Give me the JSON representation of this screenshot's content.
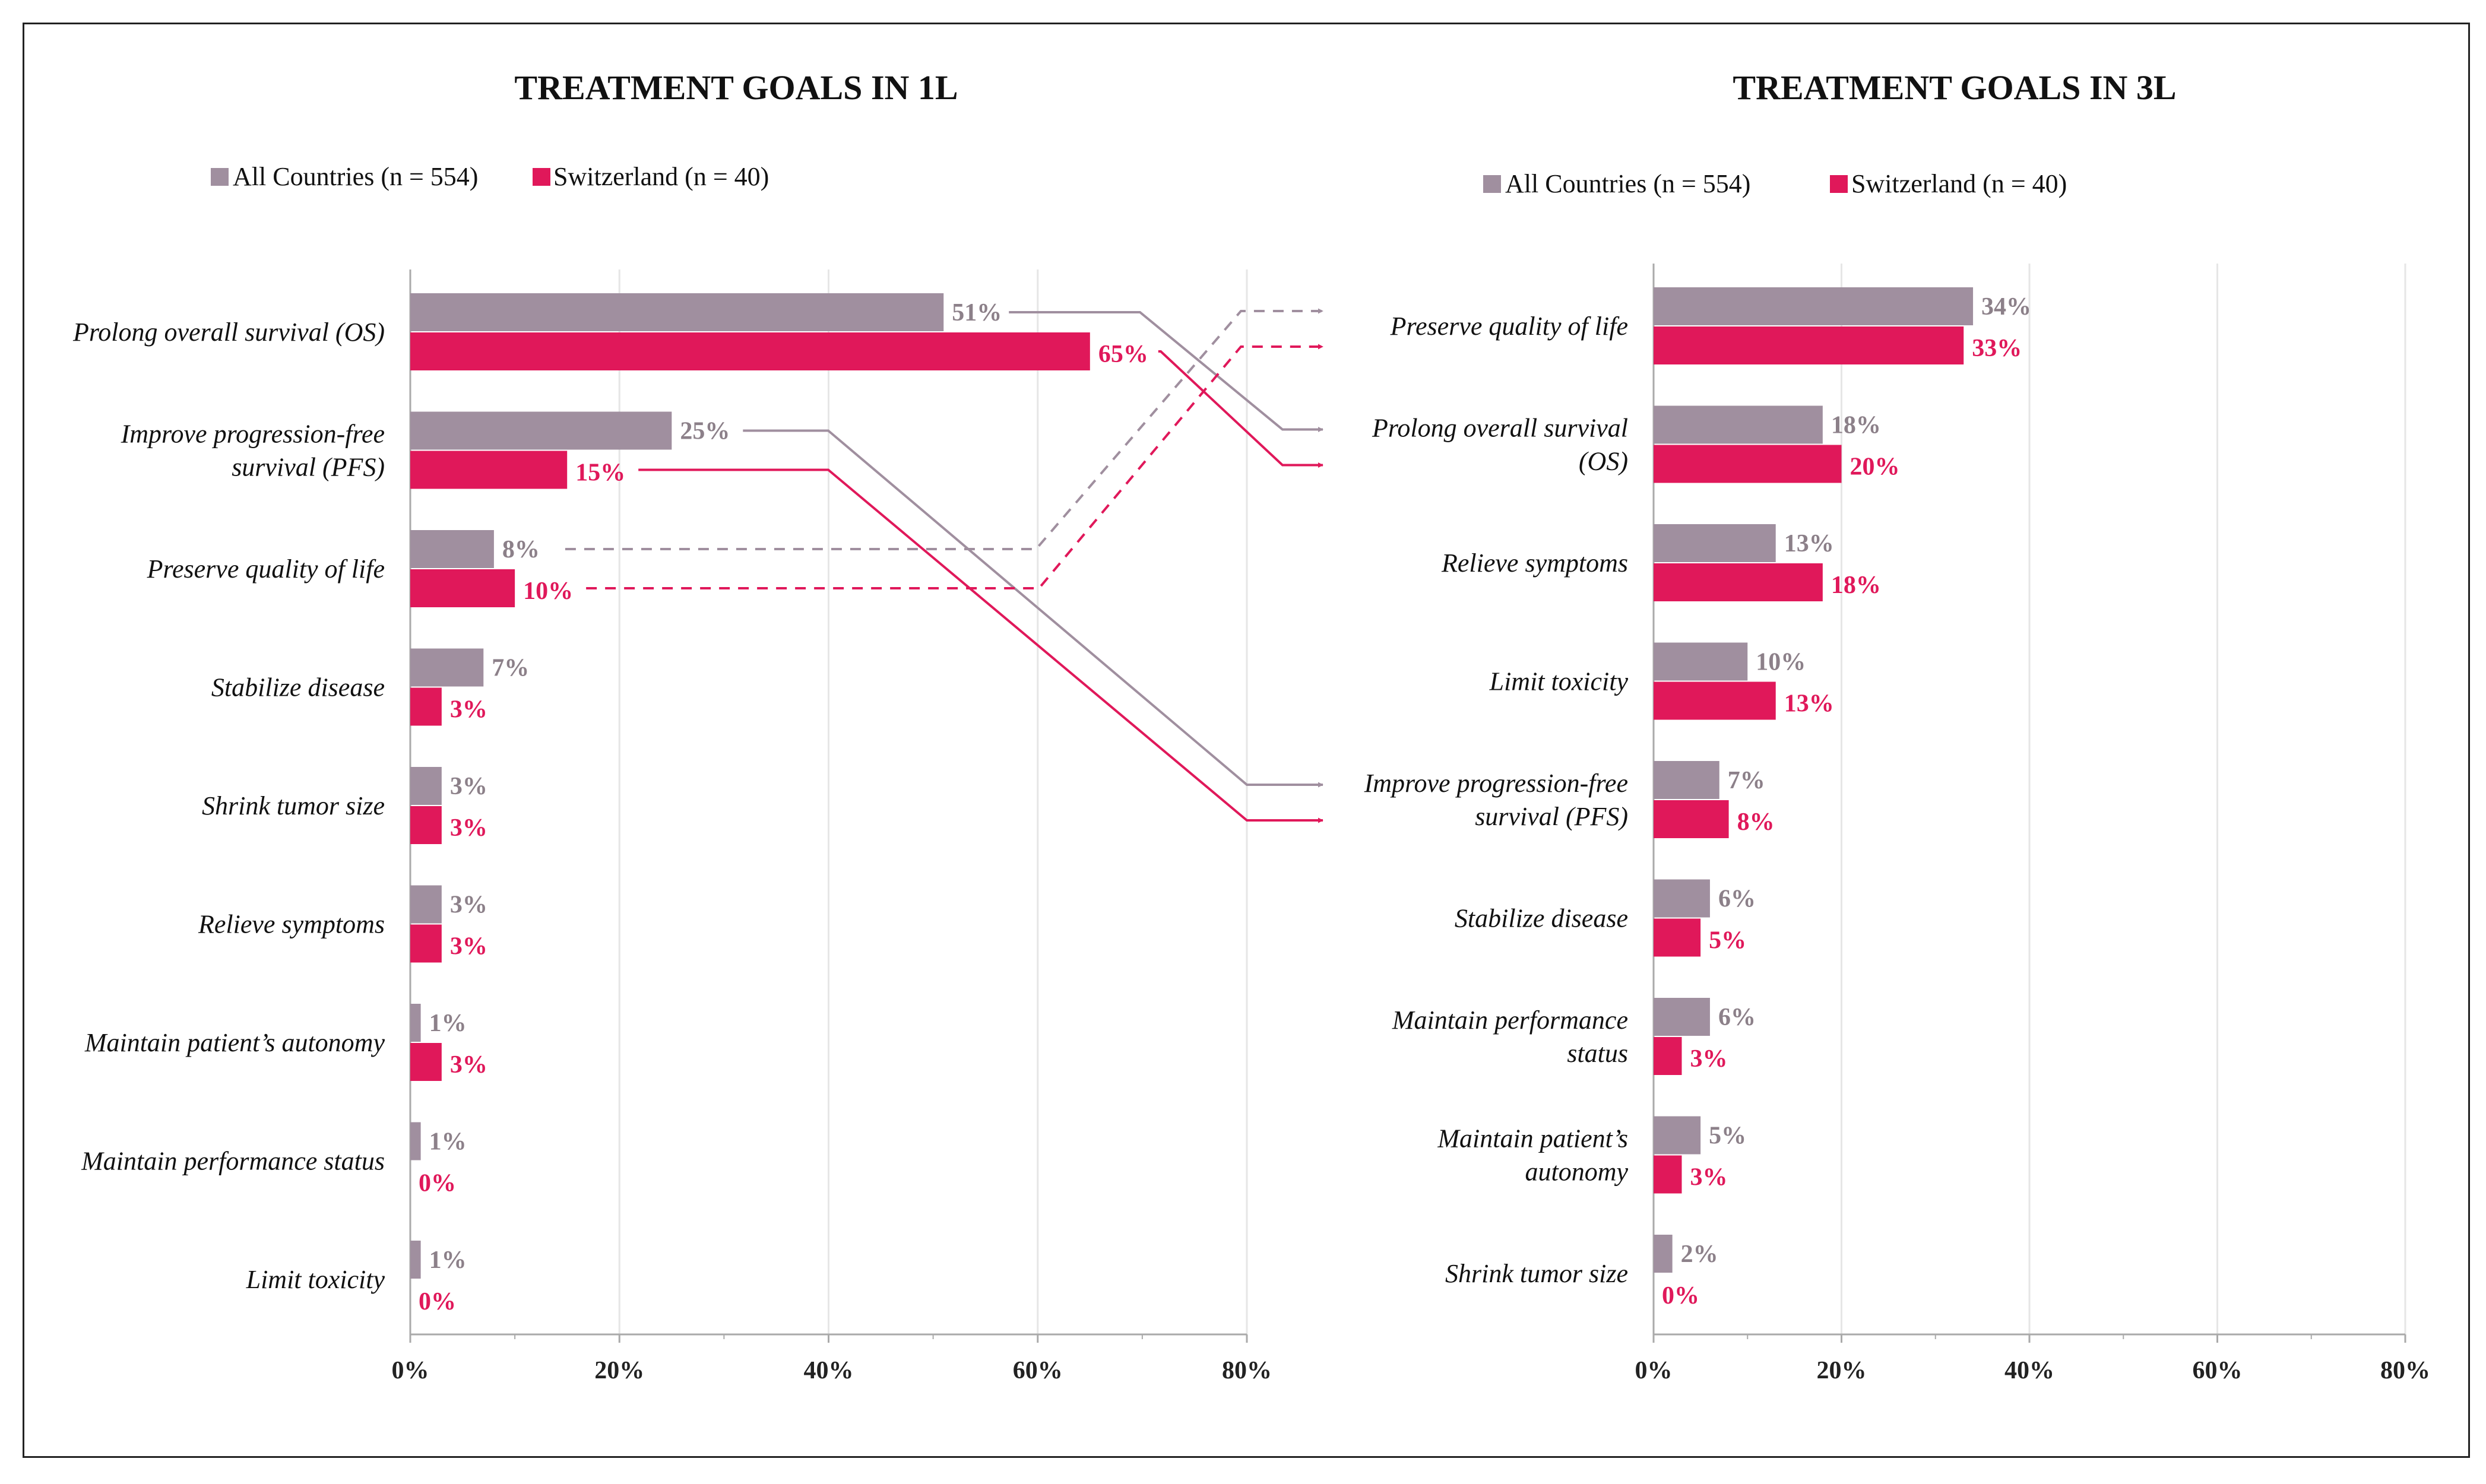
{
  "colors": {
    "all_countries": "#a08f9f",
    "switzerland": "#e0185a",
    "all_label": "#8c8089",
    "switzerland_label": "#e0185a",
    "axis": "#aaaaaa",
    "grid": "#e6e6e6"
  },
  "chart_data": [
    {
      "type": "bar",
      "orientation": "horizontal",
      "title": "TREATMENT GOALS IN 1L",
      "legend": [
        "All Countries (n = 554)",
        "Switzerland (n = 40)"
      ],
      "legend_position": "top-left",
      "categories": [
        "Prolong overall survival (OS)",
        "Improve progression-free survival (PFS)",
        "Preserve quality of life",
        "Stabilize disease",
        "Shrink tumor size",
        "Relieve symptoms",
        "Maintain patient’s autonomy",
        "Maintain performance status",
        "Limit toxicity"
      ],
      "series": [
        {
          "name": "All Countries (n = 554)",
          "values": [
            51,
            25,
            8,
            7,
            3,
            3,
            1,
            1,
            1
          ]
        },
        {
          "name": "Switzerland (n = 40)",
          "values": [
            65,
            15,
            10,
            3,
            3,
            3,
            3,
            0,
            0
          ]
        }
      ],
      "value_labels": {
        "All Countries (n = 554)": [
          "51%",
          "25%",
          "8%",
          "7%",
          "3%",
          "3%",
          "1%",
          "1%",
          "1%"
        ],
        "Switzerland (n = 40)": [
          "65%",
          "15%",
          "10%",
          "3%",
          "3%",
          "3%",
          "3%",
          "0%",
          "0%"
        ]
      },
      "xlim": [
        0,
        80
      ],
      "xticks": [
        "0%",
        "20%",
        "40%",
        "60%",
        "80%"
      ],
      "grid": true
    },
    {
      "type": "bar",
      "orientation": "horizontal",
      "title": "TREATMENT GOALS IN 3L",
      "legend": [
        "All Countries (n = 554)",
        "Switzerland (n = 40)"
      ],
      "legend_position": "top-left",
      "categories": [
        "Preserve quality of life",
        "Prolong overall survival (OS)",
        "Relieve symptoms",
        "Limit toxicity",
        "Improve progression-free survival (PFS)",
        "Stabilize disease",
        "Maintain performance status",
        "Maintain patient’s autonomy",
        "Shrink tumor size"
      ],
      "series": [
        {
          "name": "All Countries (n = 554)",
          "values": [
            34,
            18,
            13,
            10,
            7,
            6,
            6,
            5,
            2
          ]
        },
        {
          "name": "Switzerland (n = 40)",
          "values": [
            33,
            20,
            18,
            13,
            8,
            5,
            3,
            3,
            0
          ]
        }
      ],
      "value_labels": {
        "All Countries (n = 554)": [
          "34%",
          "18%",
          "13%",
          "10%",
          "7%",
          "6%",
          "6%",
          "5%",
          "2%"
        ],
        "Switzerland (n = 40)": [
          "33%",
          "20%",
          "18%",
          "13%",
          "8%",
          "5%",
          "3%",
          "3%",
          "0%"
        ]
      },
      "xlim": [
        0,
        80
      ],
      "xticks": [
        "0%",
        "20%",
        "40%",
        "60%",
        "80%"
      ],
      "grid": true
    }
  ],
  "transitions": [
    {
      "goal": "Prolong overall survival (OS)",
      "from_rank_1L": 1,
      "to_rank_3L": 2,
      "line_style": "solid"
    },
    {
      "goal": "Improve progression-free survival (PFS)",
      "from_rank_1L": 2,
      "to_rank_3L": 5,
      "line_style": "solid"
    },
    {
      "goal": "Preserve quality of life",
      "from_rank_1L": 3,
      "to_rank_3L": 1,
      "line_style": "dashed"
    }
  ]
}
